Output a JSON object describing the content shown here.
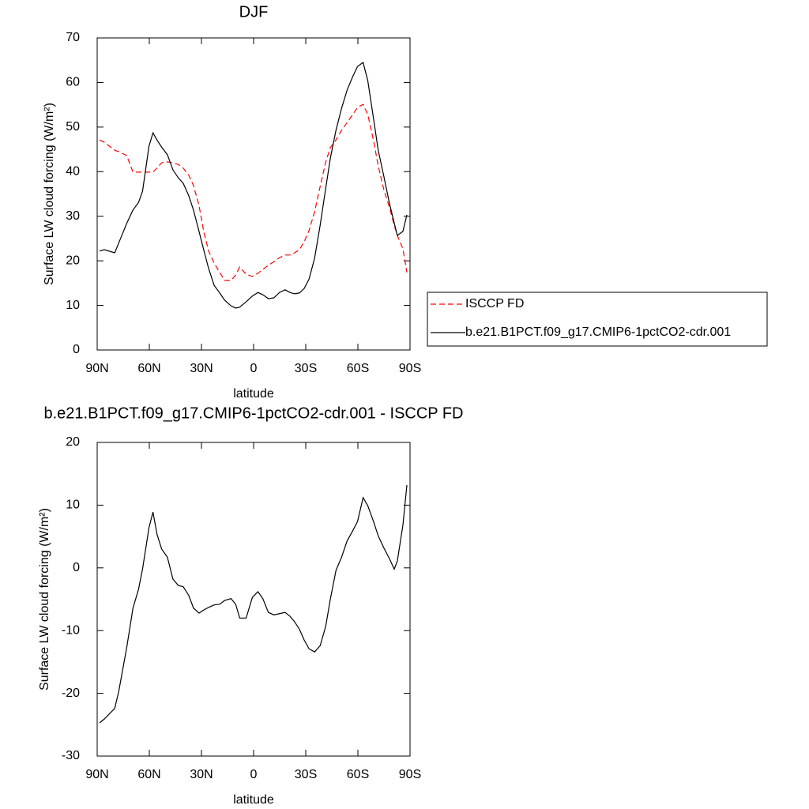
{
  "chart_data": [
    {
      "type": "line",
      "title": "DJF",
      "x_label": "latitude",
      "y_label": "Surface LW cloud forcing (W/m²)",
      "x": [
        88.6,
        85.9,
        79.9,
        77.6,
        73.0,
        69.4,
        66.2,
        63.9,
        60.2,
        57.9,
        55.6,
        52.9,
        49.6,
        46.4,
        43.3,
        40.5,
        37.3,
        34.6,
        31.4,
        28.6,
        25.9,
        22.7,
        19.5,
        16.7,
        13.0,
        10.3,
        8.0,
        4.3,
        0.7,
        -2.5,
        -5.3,
        -8.5,
        -11.7,
        -14.9,
        -18.1,
        -20.9,
        -23.6,
        -26.4,
        -29.1,
        -31.9,
        -35.1,
        -38.3,
        -41.5,
        -44.2,
        -47.4,
        -50.6,
        -53.8,
        -57.0,
        -59.8,
        -63.0,
        -65.7,
        -69.0,
        -71.7,
        -74.9,
        -78.1,
        -80.9,
        -82.7,
        -85.9,
        -88.2
      ],
      "series": [
        {
          "name": "ISCCP FD",
          "color": "#ff0000",
          "linestyle": "dashed",
          "values": [
            47.1,
            46.6,
            44.8,
            44.5,
            43.6,
            39.9,
            39.9,
            39.9,
            39.9,
            39.9,
            40.8,
            42.0,
            42.2,
            42.0,
            41.6,
            40.8,
            39.2,
            36.9,
            32.4,
            26.4,
            22.2,
            19.5,
            17.4,
            15.6,
            15.6,
            16.8,
            18.6,
            17.0,
            16.5,
            17.2,
            18.1,
            19.0,
            19.8,
            20.7,
            21.3,
            21.3,
            21.8,
            22.5,
            24.3,
            26.8,
            31.0,
            36.7,
            42.2,
            45.4,
            47.1,
            49.3,
            51.0,
            52.8,
            54.4,
            55.1,
            52.8,
            47.0,
            41.3,
            36.0,
            32.1,
            28.0,
            25.7,
            22.7,
            17.4
          ]
        },
        {
          "name": "b.e21.B1PCT.f09_g17.CMIP6-1pctCO2-cdr.001",
          "color": "#000000",
          "linestyle": "solid",
          "values": [
            22.2,
            22.5,
            21.8,
            24.0,
            28.4,
            31.4,
            33.1,
            35.6,
            45.7,
            48.7,
            47.1,
            45.5,
            43.8,
            40.4,
            38.6,
            37.4,
            34.6,
            31.4,
            26.6,
            22.3,
            18.3,
            14.5,
            12.8,
            11.2,
            9.9,
            9.4,
            9.6,
            10.8,
            12.1,
            12.9,
            12.4,
            11.5,
            11.7,
            12.9,
            13.5,
            12.9,
            12.6,
            12.8,
            13.8,
            15.9,
            20.6,
            28.0,
            36.3,
            43.1,
            49.3,
            54.2,
            58.3,
            61.3,
            63.6,
            64.5,
            60.4,
            51.9,
            44.8,
            39.0,
            33.0,
            28.5,
            25.7,
            26.6,
            30.3
          ]
        }
      ],
      "xlim": [
        90,
        -90
      ],
      "xticks": [
        {
          "value": 90,
          "label": "90N"
        },
        {
          "value": 60,
          "label": "60N"
        },
        {
          "value": 30,
          "label": "30N"
        },
        0,
        {
          "value": -30,
          "label": "30S"
        },
        {
          "value": -60,
          "label": "60S"
        },
        {
          "value": -90,
          "label": "90S"
        }
      ],
      "ylim": [
        0,
        70
      ],
      "yticks": [
        0,
        10,
        20,
        30,
        40,
        50,
        60,
        70
      ],
      "legend": "right"
    },
    {
      "type": "line",
      "title": "b.e21.B1PCT.f09_g17.CMIP6-1pctCO2-cdr.001 - ISCCP FD",
      "x_label": "latitude",
      "y_label": "Surface LW cloud forcing (W/m²)",
      "x": [
        88.6,
        85.9,
        79.9,
        77.6,
        73.0,
        69.4,
        66.2,
        63.9,
        60.2,
        57.9,
        55.6,
        52.9,
        49.6,
        46.4,
        43.3,
        40.5,
        37.3,
        34.6,
        31.4,
        28.6,
        25.9,
        22.7,
        19.5,
        16.7,
        13.0,
        10.3,
        8.0,
        4.3,
        0.7,
        -2.5,
        -5.3,
        -8.5,
        -11.7,
        -14.9,
        -18.1,
        -20.9,
        -23.6,
        -26.4,
        -29.1,
        -31.9,
        -35.1,
        -38.3,
        -41.5,
        -44.2,
        -47.4,
        -50.6,
        -53.8,
        -57.0,
        -59.8,
        -63.0,
        -65.7,
        -69.0,
        -71.7,
        -74.9,
        -78.1,
        -80.9,
        -82.7,
        -85.9,
        -88.2
      ],
      "series": [
        {
          "color": "#000000",
          "linestyle": "solid",
          "values": [
            -24.7,
            -24.1,
            -22.4,
            -19.7,
            -12.7,
            -6.4,
            -3.4,
            -0.2,
            6.4,
            8.9,
            5.4,
            3.0,
            1.7,
            -1.8,
            -2.8,
            -3.0,
            -4.4,
            -6.4,
            -7.2,
            -6.7,
            -6.3,
            -5.9,
            -5.8,
            -5.2,
            -4.9,
            -5.8,
            -8.0,
            -8.0,
            -4.7,
            -3.8,
            -4.9,
            -7.1,
            -7.5,
            -7.3,
            -7.1,
            -7.7,
            -8.6,
            -9.8,
            -11.5,
            -12.9,
            -13.4,
            -12.4,
            -9.3,
            -4.9,
            -0.4,
            1.7,
            4.3,
            5.9,
            7.4,
            11.2,
            9.9,
            7.4,
            5.1,
            3.2,
            1.5,
            -0.2,
            1.1,
            6.8,
            13.2
          ]
        }
      ],
      "xlim": [
        90,
        -90
      ],
      "xticks": [
        {
          "value": 90,
          "label": "90N"
        },
        {
          "value": 60,
          "label": "60N"
        },
        {
          "value": 30,
          "label": "30N"
        },
        0,
        {
          "value": -30,
          "label": "30S"
        },
        {
          "value": -60,
          "label": "60S"
        },
        {
          "value": -90,
          "label": "90S"
        }
      ],
      "ylim": [
        -30,
        20
      ],
      "yticks": [
        -30,
        -20,
        -10,
        0,
        10,
        20
      ]
    }
  ]
}
